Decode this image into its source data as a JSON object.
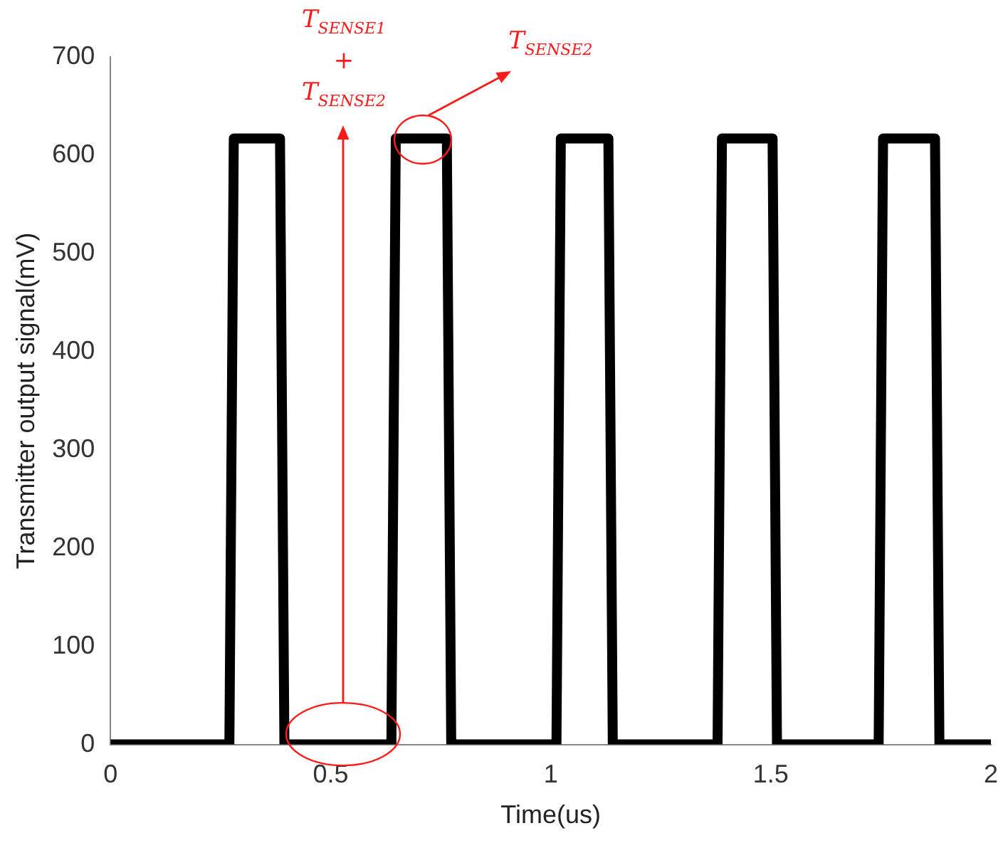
{
  "chart_data": {
    "type": "line",
    "xlabel": "Time(us)",
    "ylabel": "Transmitter output signal(mV)",
    "series": [
      {
        "color": "#000000",
        "x": [
          0,
          0.27,
          0.28,
          0.385,
          0.395,
          0.638,
          0.648,
          0.764,
          0.774,
          1.013,
          1.023,
          1.131,
          1.141,
          1.379,
          1.389,
          1.504,
          1.514,
          1.745,
          1.755,
          1.873,
          1.883,
          2
        ],
        "values": [
          0,
          0,
          617,
          617,
          0,
          0,
          617,
          617,
          0,
          0,
          617,
          617,
          0,
          0,
          617,
          617,
          0,
          0,
          617,
          617,
          0,
          0
        ]
      }
    ],
    "xlim": [
      0,
      2
    ],
    "xticks": [
      0,
      0.5,
      1,
      1.5,
      2
    ],
    "ylim": [
      0,
      700
    ],
    "yticks": [
      0,
      100,
      200,
      300,
      400,
      500,
      600,
      700
    ],
    "grid": false,
    "legend": false,
    "marker": "none",
    "line_style": "solid",
    "annotations": [
      "T$_{SENSE1}$\n+\nT$_{SENSE2}$",
      "T$_{SENSE2}$"
    ]
  }
}
